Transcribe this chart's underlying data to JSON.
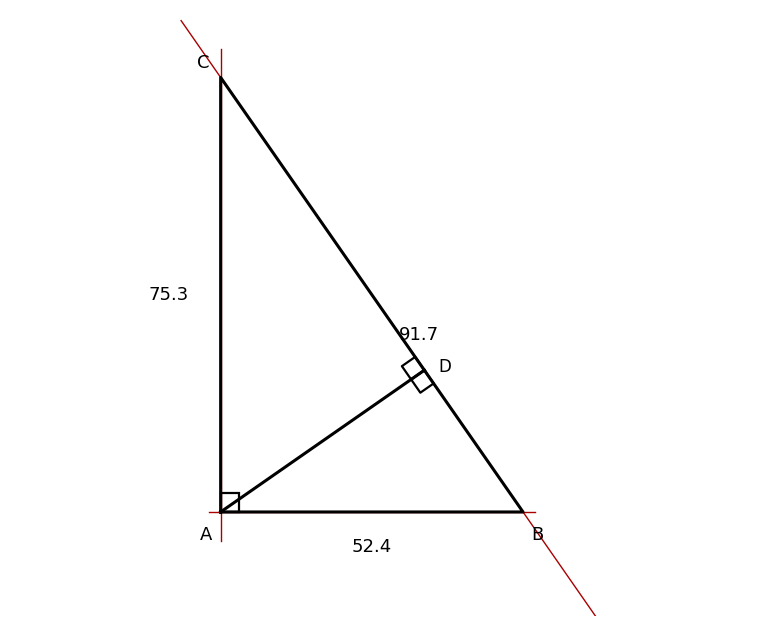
{
  "AB": 52.4,
  "AC": 75.3,
  "triangle_color": "black",
  "triangle_lw": 2.2,
  "red_color": "#aa0000",
  "red_lw": 1.0,
  "label_A": "A",
  "label_B": "B",
  "label_C": "C",
  "label_D": "D",
  "label_AB": "52.4",
  "label_AC": "75.3",
  "label_CB": "91.7",
  "bg_color": "#ffffff",
  "figsize": [
    7.76,
    6.2
  ],
  "dpi": 100
}
